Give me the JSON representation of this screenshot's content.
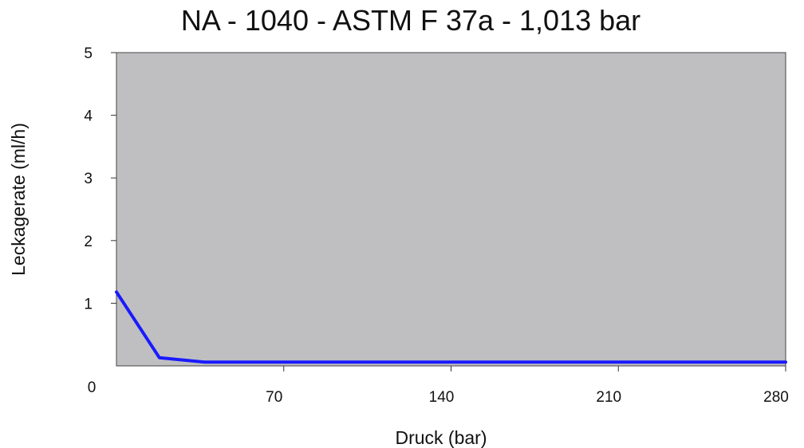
{
  "chart_data": {
    "type": "line",
    "title": "NA - 1040 - ASTM F 37a - 1,013 bar",
    "xlabel": "Druck (bar)",
    "ylabel": "Leckagerate (ml/h)",
    "x_ticks": [
      "70",
      "140",
      "210",
      "280"
    ],
    "x_tick_values": [
      70,
      140,
      210,
      280
    ],
    "y_ticks": [
      "1",
      "2",
      "3",
      "4",
      "5"
    ],
    "y_tick_values": [
      1,
      2,
      3,
      4,
      5
    ],
    "origin_label": "0",
    "xlim": [
      0,
      280
    ],
    "ylim": [
      0,
      5
    ],
    "grid": false,
    "plot_background": "#bfbfc2",
    "series": [
      {
        "color": "#1a1aff",
        "x": [
          0,
          18,
          37,
          280
        ],
        "y": [
          1.18,
          0.13,
          0.06,
          0.06
        ]
      }
    ]
  }
}
